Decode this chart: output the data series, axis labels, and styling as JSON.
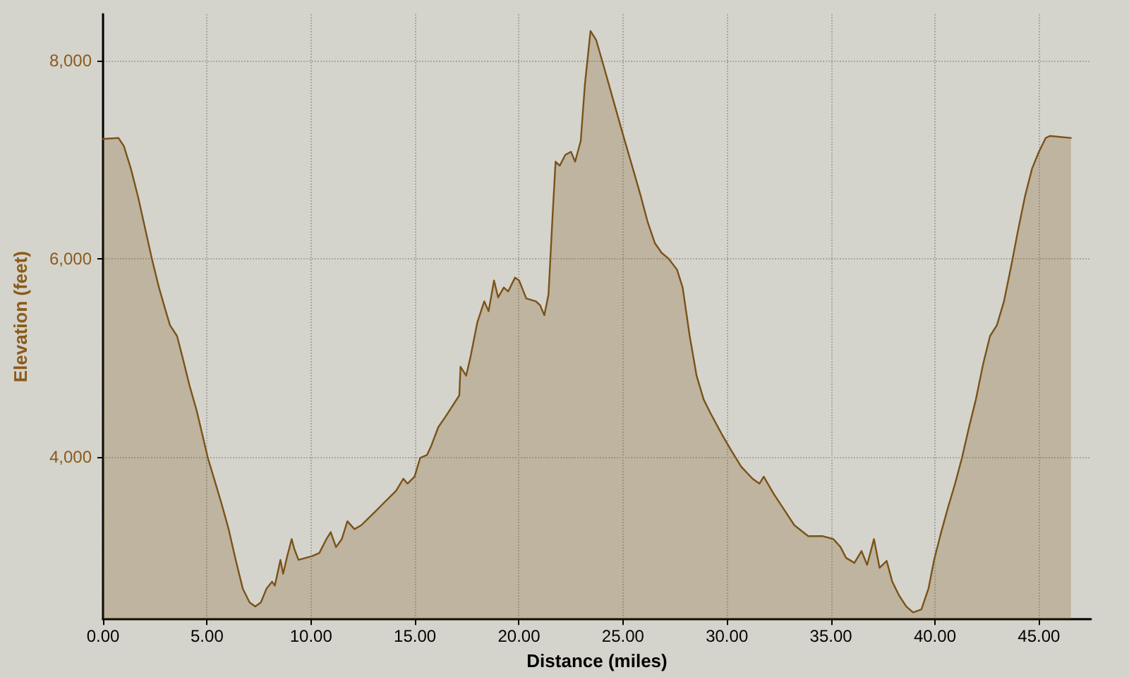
{
  "chart_data": {
    "type": "area",
    "xlabel": "Distance (miles)",
    "ylabel": "Elevation (feet)",
    "xlim": [
      0,
      47.5
    ],
    "ylim": [
      2360,
      8470
    ],
    "xticks": [
      {
        "value": 0,
        "label": "0.00"
      },
      {
        "value": 5,
        "label": "5.00"
      },
      {
        "value": 10,
        "label": "10.00"
      },
      {
        "value": 15,
        "label": "15.00"
      },
      {
        "value": 20,
        "label": "20.00"
      },
      {
        "value": 25,
        "label": "25.00"
      },
      {
        "value": 30,
        "label": "30.00"
      },
      {
        "value": 35,
        "label": "35.00"
      },
      {
        "value": 40,
        "label": "40.00"
      },
      {
        "value": 45,
        "label": "45.00"
      }
    ],
    "yticks": [
      {
        "value": 4000,
        "label": "4,000"
      },
      {
        "value": 6000,
        "label": "6,000"
      },
      {
        "value": 8000,
        "label": "8,000"
      }
    ],
    "grid": true,
    "marker": "none",
    "line_style": "solid",
    "series": [
      {
        "color": "#7b5218",
        "x": [
          0,
          0.74,
          1.0,
          1.34,
          1.68,
          2.01,
          2.35,
          2.69,
          3.02,
          3.22,
          3.56,
          3.83,
          4.16,
          4.5,
          4.77,
          5.04,
          5.37,
          5.71,
          6.04,
          6.38,
          6.72,
          7.05,
          7.32,
          7.59,
          7.86,
          8.13,
          8.26,
          8.53,
          8.66,
          8.86,
          9.07,
          9.2,
          9.4,
          9.74,
          10.07,
          10.4,
          10.74,
          10.95,
          11.2,
          11.48,
          11.75,
          12.09,
          12.42,
          12.76,
          13.1,
          13.43,
          13.77,
          14.1,
          14.44,
          14.64,
          14.98,
          15.25,
          15.58,
          15.78,
          16.12,
          16.45,
          16.79,
          17.13,
          17.19,
          17.46,
          17.66,
          18.0,
          18.33,
          18.54,
          18.8,
          19.0,
          19.27,
          19.48,
          19.81,
          20.01,
          20.35,
          20.82,
          21.02,
          21.22,
          21.42,
          21.63,
          21.76,
          21.96,
          22.23,
          22.5,
          22.7,
          22.97,
          23.17,
          23.44,
          23.71,
          24.04,
          24.51,
          24.98,
          25.52,
          25.86,
          26.19,
          26.53,
          26.86,
          27.2,
          27.6,
          27.87,
          28.21,
          28.54,
          28.88,
          29.21,
          29.75,
          30.22,
          30.69,
          31.23,
          31.56,
          31.77,
          32.24,
          32.71,
          33.24,
          33.91,
          34.59,
          35.12,
          35.46,
          35.73,
          36.13,
          36.47,
          36.74,
          37.07,
          37.34,
          37.68,
          37.95,
          38.28,
          38.62,
          38.95,
          39.35,
          39.69,
          39.96,
          40.3,
          40.63,
          40.97,
          41.3,
          41.64,
          41.97,
          42.31,
          42.65,
          42.98,
          43.32,
          43.66,
          43.99,
          44.33,
          44.67,
          45.0,
          45.33,
          45.53,
          46.54
        ],
        "values": [
          7210,
          7220,
          7140,
          6910,
          6630,
          6320,
          6000,
          5710,
          5470,
          5330,
          5220,
          5000,
          4720,
          4470,
          4230,
          3990,
          3760,
          3520,
          3270,
          2960,
          2670,
          2530,
          2490,
          2530,
          2670,
          2740,
          2700,
          2960,
          2820,
          3000,
          3170,
          3070,
          2960,
          2980,
          3000,
          3030,
          3170,
          3240,
          3090,
          3170,
          3350,
          3270,
          3310,
          3380,
          3450,
          3520,
          3590,
          3660,
          3780,
          3730,
          3800,
          3990,
          4020,
          4110,
          4300,
          4400,
          4510,
          4620,
          4910,
          4820,
          5000,
          5360,
          5570,
          5470,
          5780,
          5610,
          5710,
          5670,
          5810,
          5780,
          5600,
          5570,
          5530,
          5430,
          5640,
          6490,
          6980,
          6940,
          7050,
          7080,
          6980,
          7190,
          7760,
          8300,
          8210,
          7970,
          7620,
          7270,
          6880,
          6630,
          6370,
          6160,
          6060,
          6000,
          5890,
          5710,
          5220,
          4820,
          4580,
          4440,
          4230,
          4060,
          3900,
          3780,
          3730,
          3800,
          3630,
          3480,
          3310,
          3200,
          3200,
          3170,
          3090,
          2980,
          2930,
          3050,
          2910,
          3170,
          2880,
          2950,
          2740,
          2600,
          2490,
          2430,
          2460,
          2670,
          2960,
          3240,
          3490,
          3730,
          3990,
          4300,
          4580,
          4930,
          5220,
          5330,
          5570,
          5920,
          6280,
          6630,
          6910,
          7080,
          7220,
          7240,
          7220
        ]
      }
    ]
  }
}
